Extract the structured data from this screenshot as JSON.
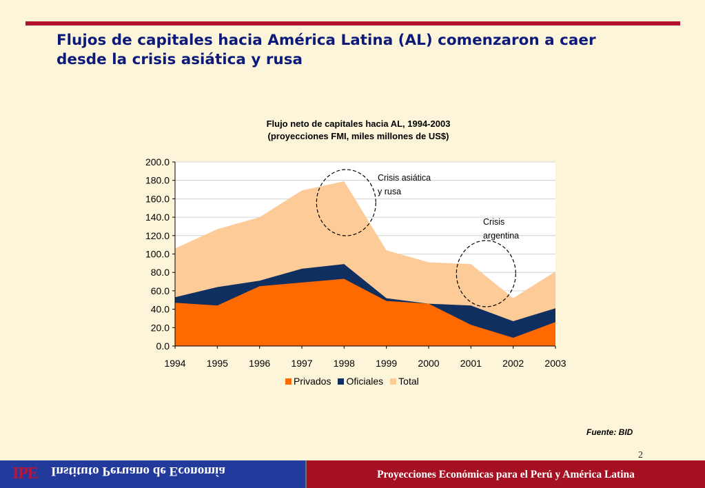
{
  "slide": {
    "title_line1": "Flujos de capitales hacia América Latina (AL) comenzaron a caer",
    "title_line2": "desde la crisis asiática y rusa",
    "source": "Fuente: BID",
    "page_number": "2"
  },
  "footer": {
    "logo": "IPE",
    "institute": "Instituto Peruano de Economía",
    "caption": "Proyecciones Económicas para el Perú y América Latina"
  },
  "colors": {
    "privados": "#ff6a00",
    "oficiales": "#102f61",
    "total": "#fccb97",
    "title": "#0d1a7a",
    "accent_red": "#b3102e"
  },
  "chart_data": {
    "type": "area",
    "title_line1": "Flujo neto de capitales hacia AL, 1994-2003",
    "title_line2": "(proyecciones FMI, miles millones de US$)",
    "x": [
      "1994",
      "1995",
      "1996",
      "1997",
      "1998",
      "1999",
      "2000",
      "2001",
      "2002",
      "2003"
    ],
    "xlabel": "",
    "ylabel": "",
    "ylim": [
      0,
      200
    ],
    "y_ticks": [
      "0.0",
      "20.0",
      "40.0",
      "60.0",
      "80.0",
      "100.0",
      "120.0",
      "140.0",
      "160.0",
      "180.0",
      "200.0"
    ],
    "grid": true,
    "legend_position": "bottom",
    "series": [
      {
        "name": "Privados",
        "values": [
          47,
          44,
          65,
          69,
          73,
          49,
          46,
          23,
          9,
          26
        ]
      },
      {
        "name": "Oficiales",
        "values": [
          53,
          64,
          71,
          84,
          89,
          52,
          46,
          44,
          27,
          41
        ]
      },
      {
        "name": "Total",
        "values": [
          106,
          127,
          140,
          169,
          179,
          104,
          91,
          89,
          52,
          81
        ]
      }
    ],
    "annotations": [
      {
        "text_line1": "Crisis asiática",
        "text_line2": "y rusa",
        "x": "1998"
      },
      {
        "text_line1": "Crisis",
        "text_line2": "argentina",
        "x": "2001"
      }
    ]
  }
}
